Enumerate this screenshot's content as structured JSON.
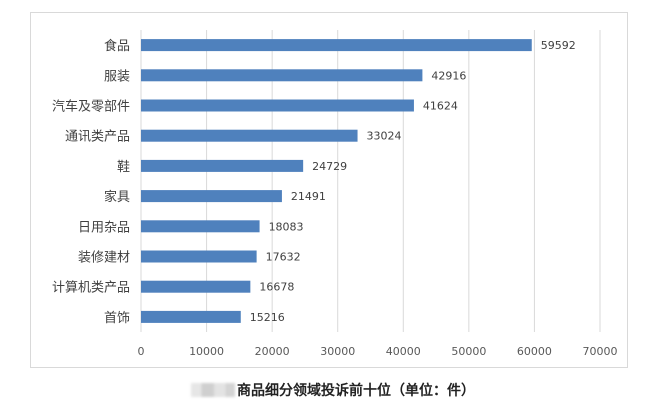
{
  "caption": {
    "text": "商品细分领域投诉前十位（单位：件）"
  },
  "chart_data": {
    "type": "bar",
    "orientation": "horizontal",
    "categories": [
      "食品",
      "服装",
      "汽车及零部件",
      "通讯类产品",
      "鞋",
      "家具",
      "日用杂品",
      "装修建材",
      "计算机类产品",
      "首饰"
    ],
    "values": [
      59592,
      42916,
      41624,
      33024,
      24729,
      21491,
      18083,
      17632,
      16678,
      15216
    ],
    "x_ticks": [
      0,
      10000,
      20000,
      30000,
      40000,
      50000,
      60000,
      70000
    ],
    "xlim": [
      0,
      70000
    ],
    "grid": true,
    "data_labels": true,
    "bar_color": "#4f81bd",
    "grid_color": "#d9d9d9"
  }
}
